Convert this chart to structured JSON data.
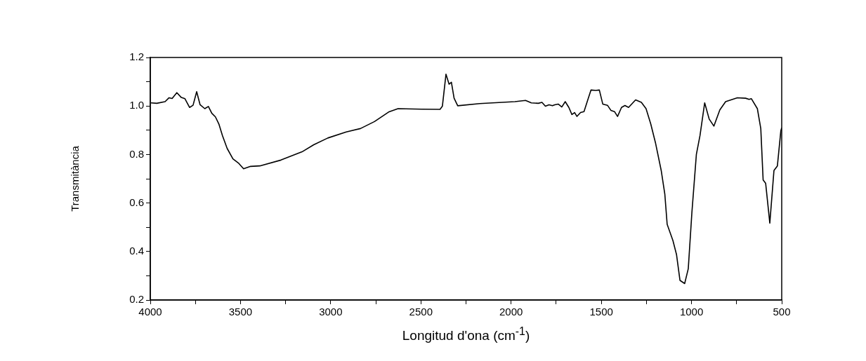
{
  "chart_data": {
    "type": "line",
    "xlabel": "Longitud d'ona (cm$^{-1}$)",
    "ylabel": "Transmitància",
    "xlim": [
      4000,
      500
    ],
    "ylim": [
      0.2,
      1.2
    ],
    "xticks": [
      4000,
      {
        "value": 3750,
        "label": null
      },
      3500,
      {
        "value": 3250,
        "label": null
      },
      3000,
      {
        "value": 2750,
        "label": null
      },
      2500,
      {
        "value": 2250,
        "label": null
      },
      2000,
      {
        "value": 1750,
        "label": null
      },
      1500,
      {
        "value": 1250,
        "label": null
      },
      1000,
      {
        "value": 750,
        "label": null
      },
      500
    ],
    "yticks": [
      {
        "value": 0.2,
        "label": "0.2"
      },
      {
        "value": 0.3,
        "label": null
      },
      {
        "value": 0.4,
        "label": "0.4"
      },
      {
        "value": 0.5,
        "label": null
      },
      {
        "value": 0.6,
        "label": "0.6"
      },
      {
        "value": 0.7,
        "label": null
      },
      {
        "value": 0.8,
        "label": "0.8"
      },
      {
        "value": 0.9,
        "label": null
      },
      {
        "value": 1.0,
        "label": "1.0"
      },
      {
        "value": 1.1,
        "label": null
      },
      {
        "value": 1.2,
        "label": "1.2"
      }
    ],
    "grid": false,
    "legend": false,
    "marker": "none",
    "line_style": "solid",
    "series": [
      {
        "color": "#000000",
        "x": [
          3996,
          3964,
          3918,
          3896,
          3879,
          3853,
          3828,
          3808,
          3782,
          3763,
          3743,
          3724,
          3698,
          3678,
          3659,
          3639,
          3620,
          3600,
          3574,
          3542,
          3509,
          3483,
          3444,
          3393,
          3276,
          3159,
          3094,
          3016,
          2914,
          2835,
          2757,
          2679,
          2627,
          2497,
          2394,
          2381,
          2361,
          2344,
          2331,
          2316,
          2296,
          2173,
          1979,
          1920,
          1888,
          1849,
          1829,
          1810,
          1790,
          1771,
          1758,
          1739,
          1719,
          1700,
          1680,
          1663,
          1648,
          1635,
          1615,
          1596,
          1576,
          1557,
          1531,
          1511,
          1492,
          1466,
          1447,
          1427,
          1410,
          1388,
          1369,
          1349,
          1310,
          1278,
          1252,
          1226,
          1200,
          1168,
          1148,
          1135,
          1103,
          1083,
          1064,
          1038,
          1018,
          998,
          973,
          953,
          927,
          902,
          876,
          843,
          811,
          746,
          700,
          681,
          668,
          635,
          616,
          603,
          589,
          566,
          543,
          524,
          505,
          500
        ],
        "values": [
          1.013,
          1.011,
          1.018,
          1.034,
          1.031,
          1.055,
          1.035,
          1.03,
          0.994,
          1.003,
          1.059,
          1.005,
          0.989,
          0.998,
          0.97,
          0.955,
          0.926,
          0.878,
          0.825,
          0.782,
          0.763,
          0.741,
          0.751,
          0.753,
          0.777,
          0.811,
          0.84,
          0.868,
          0.893,
          0.907,
          0.936,
          0.975,
          0.989,
          0.987,
          0.986,
          0.999,
          1.131,
          1.09,
          1.098,
          1.032,
          1.001,
          1.01,
          1.018,
          1.023,
          1.013,
          1.011,
          1.015,
          0.999,
          1.005,
          1.001,
          1.005,
          1.008,
          0.996,
          1.018,
          0.994,
          0.965,
          0.973,
          0.957,
          0.973,
          0.977,
          1.023,
          1.066,
          1.064,
          1.066,
          1.008,
          1.003,
          0.982,
          0.977,
          0.957,
          0.994,
          1.002,
          0.994,
          1.025,
          1.015,
          0.989,
          0.926,
          0.849,
          0.734,
          0.637,
          0.512,
          0.445,
          0.387,
          0.281,
          0.268,
          0.329,
          0.56,
          0.801,
          0.878,
          1.013,
          0.946,
          0.917,
          0.984,
          1.018,
          1.034,
          1.032,
          1.027,
          1.03,
          0.989,
          0.907,
          0.695,
          0.681,
          0.517,
          0.734,
          0.753,
          0.897,
          0.91
        ]
      }
    ]
  }
}
